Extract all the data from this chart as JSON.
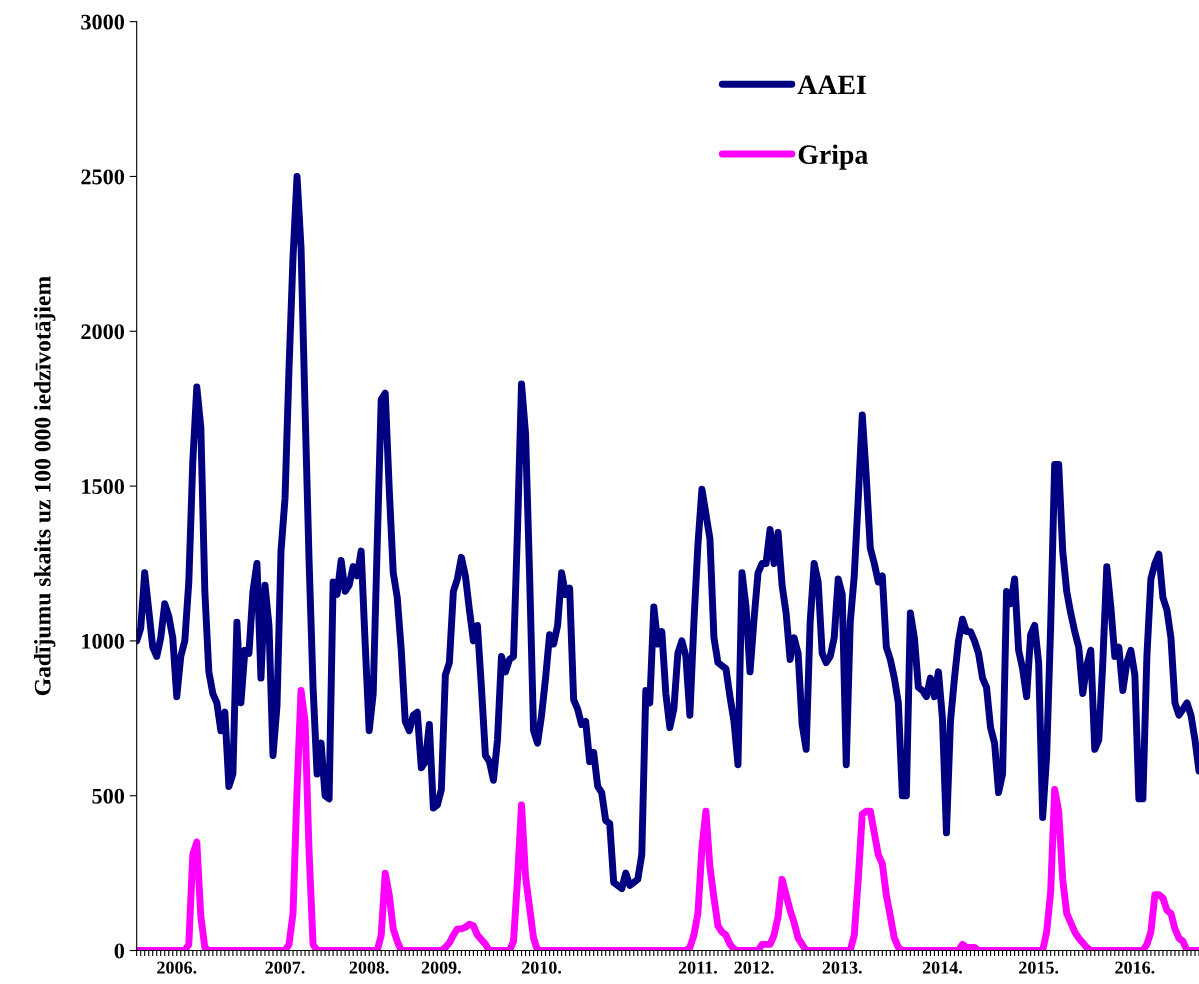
{
  "chart_data": {
    "type": "line",
    "ylabel": "Gadījumu skaits uz 100 000 iedzīvotājiem",
    "categories": [
      null,
      null,
      null,
      null,
      null,
      null,
      null,
      null,
      null,
      null,
      "2006.",
      null,
      null,
      null,
      null,
      null,
      null,
      null,
      null,
      null,
      null,
      null,
      null,
      null,
      null,
      null,
      null,
      null,
      null,
      null,
      null,
      null,
      null,
      null,
      null,
      null,
      null,
      "2007.",
      null,
      null,
      null,
      null,
      null,
      null,
      null,
      null,
      null,
      null,
      null,
      null,
      null,
      null,
      null,
      null,
      null,
      null,
      null,
      null,
      "2008.",
      null,
      null,
      null,
      null,
      null,
      null,
      null,
      null,
      null,
      null,
      null,
      null,
      null,
      null,
      null,
      null,
      null,
      "2009.",
      null,
      null,
      null,
      null,
      null,
      null,
      null,
      null,
      null,
      null,
      null,
      null,
      null,
      null,
      null,
      null,
      null,
      null,
      null,
      null,
      null,
      null,
      null,
      null,
      "2010.",
      null,
      null,
      null,
      null,
      null,
      null,
      null,
      null,
      null,
      null,
      null,
      null,
      null,
      null,
      null,
      null,
      null,
      null,
      null,
      null,
      null,
      null,
      null,
      null,
      null,
      null,
      null,
      null,
      null,
      null,
      null,
      null,
      null,
      null,
      null,
      null,
      null,
      null,
      "2011.",
      null,
      null,
      null,
      null,
      null,
      null,
      null,
      null,
      null,
      null,
      null,
      null,
      null,
      "2012.",
      null,
      null,
      null,
      null,
      null,
      null,
      null,
      null,
      null,
      null,
      null,
      null,
      null,
      null,
      null,
      null,
      null,
      null,
      null,
      null,
      null,
      "2013.",
      null,
      null,
      null,
      null,
      null,
      null,
      null,
      null,
      null,
      null,
      null,
      null,
      null,
      null,
      null,
      null,
      null,
      null,
      null,
      null,
      null,
      null,
      null,
      null,
      "2014.",
      null,
      null,
      null,
      null,
      null,
      null,
      null,
      null,
      null,
      null,
      null,
      null,
      null,
      null,
      null,
      null,
      null,
      null,
      null,
      null,
      null,
      null,
      null,
      "2015.",
      null,
      null,
      null,
      null,
      null,
      null,
      null,
      null,
      null,
      null,
      null,
      null,
      null,
      null,
      null,
      null,
      null,
      null,
      null,
      null,
      null,
      null,
      null,
      "2016.",
      null,
      null,
      null,
      null,
      null,
      null,
      null,
      null,
      null,
      null,
      null,
      null,
      null,
      null,
      null,
      null
    ],
    "ylim": [
      0,
      3000
    ],
    "yticks": [
      0,
      500,
      1000,
      1500,
      2000,
      2500,
      3000
    ],
    "grid": false,
    "legend": "top",
    "series": [
      {
        "name": "AAEI",
        "color": "#000080",
        "values": [
          1000,
          1040,
          1220,
          1100,
          980,
          950,
          1010,
          1120,
          1080,
          1010,
          820,
          950,
          1000,
          1190,
          1580,
          1820,
          1690,
          1160,
          900,
          830,
          800,
          710,
          770,
          530,
          570,
          1060,
          800,
          970,
          960,
          1160,
          1250,
          880,
          1180,
          1050,
          630,
          790,
          1290,
          1460,
          1880,
          2240,
          2500,
          2270,
          1750,
          1260,
          850,
          570,
          670,
          500,
          490,
          1190,
          1150,
          1260,
          1160,
          1180,
          1240,
          1210,
          1290,
          990,
          710,
          830,
          1310,
          1780,
          1800,
          1490,
          1220,
          1140,
          970,
          740,
          710,
          760,
          770,
          590,
          610,
          730,
          460,
          470,
          520,
          890,
          930,
          1160,
          1200,
          1270,
          1210,
          1100,
          1000,
          1050,
          850,
          630,
          610,
          550,
          680,
          950,
          900,
          940,
          950,
          1360,
          1830,
          1670,
          1220,
          710,
          670,
          760,
          880,
          1020,
          990,
          1050,
          1220,
          1150,
          1170,
          810,
          780,
          730,
          740,
          610,
          640,
          530,
          510,
          420,
          410,
          220,
          210,
          200,
          250,
          210,
          220,
          230,
          310,
          840,
          800,
          1110,
          990,
          1030,
          830,
          720,
          780,
          960,
          1000,
          950,
          760,
          1060,
          1310,
          1490,
          1410,
          1330,
          1010,
          930,
          920,
          910,
          820,
          740,
          600,
          1220,
          1110,
          900,
          1070,
          1220,
          1250,
          1250,
          1360,
          1250,
          1350,
          1180,
          1090,
          940,
          1010,
          960,
          730,
          650,
          1060,
          1250,
          1190,
          960,
          930,
          950,
          1010,
          1200,
          1150,
          600,
          1060,
          1210,
          1460,
          1730,
          1530,
          1300,
          1250,
          1190,
          1210,
          980,
          940,
          880,
          800,
          500,
          500,
          1090,
          1010,
          850,
          840,
          820,
          880,
          820,
          900,
          750,
          380,
          740,
          880,
          1000,
          1070,
          1030,
          1030,
          1000,
          960,
          880,
          850,
          720,
          670,
          510,
          570,
          1160,
          1120,
          1200,
          970,
          910,
          820,
          1020,
          1050,
          930,
          430,
          630,
          1050,
          1570,
          1570,
          1290,
          1160,
          1090,
          1030,
          980,
          830,
          920,
          970,
          650,
          680,
          930,
          1240,
          1110,
          950,
          980,
          840,
          930,
          970,
          890,
          490,
          490,
          950,
          1200,
          1250,
          1280,
          1140,
          1100,
          1010,
          800,
          760,
          780,
          800,
          760,
          680,
          580
        ]
      },
      {
        "name": "Gripa",
        "color": "#ff00ff",
        "values": [
          0,
          0,
          0,
          0,
          0,
          0,
          0,
          0,
          0,
          0,
          0,
          0,
          0,
          20,
          310,
          350,
          110,
          10,
          0,
          0,
          0,
          0,
          0,
          0,
          0,
          0,
          0,
          0,
          0,
          0,
          0,
          0,
          0,
          0,
          0,
          0,
          0,
          0,
          20,
          120,
          520,
          840,
          740,
          320,
          20,
          0,
          0,
          0,
          0,
          0,
          0,
          0,
          0,
          0,
          0,
          0,
          0,
          0,
          0,
          0,
          0,
          50,
          250,
          180,
          70,
          30,
          0,
          0,
          0,
          0,
          0,
          0,
          0,
          0,
          0,
          0,
          0,
          10,
          25,
          50,
          70,
          70,
          75,
          85,
          80,
          50,
          35,
          20,
          0,
          0,
          0,
          0,
          0,
          0,
          30,
          230,
          470,
          240,
          140,
          40,
          0,
          0,
          0,
          0,
          0,
          0,
          0,
          0,
          0,
          0,
          0,
          0,
          0,
          0,
          0,
          0,
          0,
          0,
          0,
          0,
          0,
          0,
          0,
          0,
          0,
          0,
          0,
          0,
          0,
          0,
          0,
          0,
          0,
          0,
          0,
          0,
          0,
          0,
          10,
          50,
          120,
          330,
          450,
          270,
          170,
          80,
          60,
          50,
          20,
          5,
          0,
          0,
          0,
          0,
          0,
          0,
          20,
          20,
          20,
          50,
          110,
          230,
          180,
          130,
          90,
          40,
          20,
          0,
          0,
          0,
          0,
          0,
          0,
          0,
          0,
          0,
          0,
          0,
          0,
          50,
          230,
          440,
          450,
          450,
          380,
          310,
          280,
          180,
          110,
          40,
          10,
          0,
          0,
          0,
          0,
          0,
          0,
          0,
          0,
          0,
          0,
          0,
          0,
          0,
          0,
          0,
          20,
          10,
          10,
          10,
          0,
          0,
          0,
          0,
          0,
          0,
          0,
          0,
          0,
          0,
          0,
          0,
          0,
          0,
          0,
          0,
          0,
          60,
          190,
          520,
          450,
          230,
          120,
          90,
          60,
          40,
          25,
          10,
          0,
          0,
          0,
          0,
          0,
          0,
          0,
          0,
          0,
          0,
          0,
          0,
          0,
          0,
          20,
          60,
          180,
          180,
          170,
          130,
          120,
          70,
          40,
          30,
          0,
          0,
          0,
          0
        ]
      }
    ]
  }
}
